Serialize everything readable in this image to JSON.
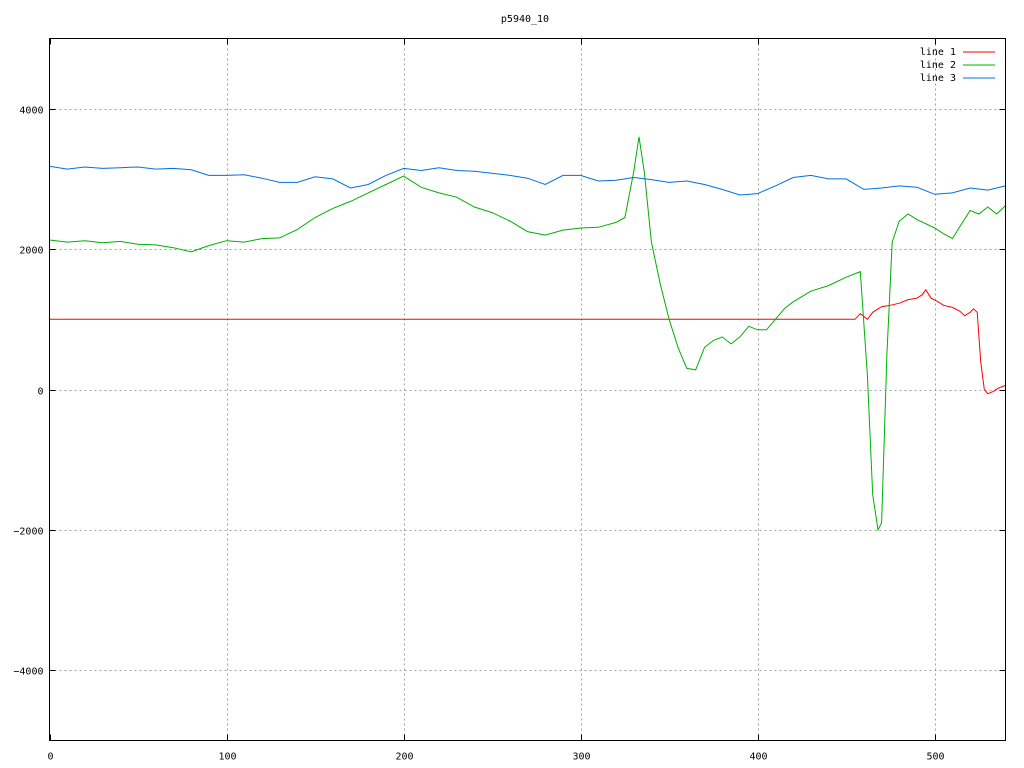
{
  "chart_data": {
    "type": "line",
    "title": "p5940_10",
    "xlabel": "",
    "ylabel": "",
    "xlim": [
      0,
      540
    ],
    "ylim": [
      -5000,
      5000
    ],
    "xticks": [
      0,
      100,
      200,
      300,
      400,
      500
    ],
    "yticks": [
      -4000,
      -2000,
      0,
      2000,
      4000
    ],
    "grid": true,
    "legend_position": "top-right",
    "series": [
      {
        "name": "line 1",
        "color": "#ff0000",
        "points": [
          [
            0,
            1000
          ],
          [
            455,
            1000
          ],
          [
            458,
            1080
          ],
          [
            462,
            1000
          ],
          [
            465,
            1100
          ],
          [
            470,
            1180
          ],
          [
            475,
            1200
          ],
          [
            480,
            1230
          ],
          [
            485,
            1280
          ],
          [
            490,
            1300
          ],
          [
            493,
            1350
          ],
          [
            495,
            1420
          ],
          [
            498,
            1300
          ],
          [
            502,
            1250
          ],
          [
            505,
            1200
          ],
          [
            510,
            1170
          ],
          [
            514,
            1120
          ],
          [
            517,
            1050
          ],
          [
            520,
            1100
          ],
          [
            522,
            1150
          ],
          [
            524,
            1100
          ],
          [
            526,
            400
          ],
          [
            528,
            0
          ],
          [
            530,
            -60
          ],
          [
            533,
            -30
          ],
          [
            536,
            20
          ],
          [
            540,
            60
          ]
        ]
      },
      {
        "name": "line 2",
        "color": "#00b000",
        "points": [
          [
            0,
            2130
          ],
          [
            10,
            2100
          ],
          [
            20,
            2120
          ],
          [
            30,
            2090
          ],
          [
            40,
            2110
          ],
          [
            50,
            2070
          ],
          [
            60,
            2060
          ],
          [
            70,
            2020
          ],
          [
            80,
            1960
          ],
          [
            90,
            2050
          ],
          [
            100,
            2120
          ],
          [
            110,
            2100
          ],
          [
            120,
            2150
          ],
          [
            130,
            2160
          ],
          [
            140,
            2280
          ],
          [
            150,
            2450
          ],
          [
            160,
            2580
          ],
          [
            170,
            2680
          ],
          [
            180,
            2800
          ],
          [
            190,
            2920
          ],
          [
            200,
            3040
          ],
          [
            210,
            2880
          ],
          [
            220,
            2800
          ],
          [
            230,
            2740
          ],
          [
            240,
            2600
          ],
          [
            250,
            2520
          ],
          [
            260,
            2400
          ],
          [
            270,
            2250
          ],
          [
            280,
            2200
          ],
          [
            290,
            2270
          ],
          [
            300,
            2300
          ],
          [
            310,
            2310
          ],
          [
            320,
            2380
          ],
          [
            325,
            2450
          ],
          [
            330,
            3100
          ],
          [
            333,
            3600
          ],
          [
            336,
            3100
          ],
          [
            340,
            2100
          ],
          [
            345,
            1500
          ],
          [
            350,
            1000
          ],
          [
            355,
            600
          ],
          [
            360,
            300
          ],
          [
            365,
            280
          ],
          [
            370,
            600
          ],
          [
            375,
            700
          ],
          [
            380,
            750
          ],
          [
            385,
            650
          ],
          [
            390,
            750
          ],
          [
            395,
            900
          ],
          [
            400,
            850
          ],
          [
            405,
            850
          ],
          [
            410,
            1000
          ],
          [
            415,
            1150
          ],
          [
            420,
            1250
          ],
          [
            430,
            1400
          ],
          [
            440,
            1480
          ],
          [
            450,
            1600
          ],
          [
            458,
            1680
          ],
          [
            462,
            200
          ],
          [
            465,
            -1500
          ],
          [
            468,
            -2000
          ],
          [
            470,
            -1900
          ],
          [
            473,
            500
          ],
          [
            476,
            2100
          ],
          [
            480,
            2400
          ],
          [
            485,
            2500
          ],
          [
            490,
            2420
          ],
          [
            500,
            2300
          ],
          [
            505,
            2220
          ],
          [
            510,
            2150
          ],
          [
            515,
            2350
          ],
          [
            520,
            2550
          ],
          [
            525,
            2500
          ],
          [
            530,
            2600
          ],
          [
            535,
            2500
          ],
          [
            540,
            2620
          ]
        ]
      },
      {
        "name": "line 3",
        "color": "#0070e0",
        "points": [
          [
            0,
            3180
          ],
          [
            10,
            3140
          ],
          [
            20,
            3170
          ],
          [
            30,
            3150
          ],
          [
            40,
            3160
          ],
          [
            50,
            3170
          ],
          [
            60,
            3140
          ],
          [
            70,
            3150
          ],
          [
            80,
            3130
          ],
          [
            90,
            3050
          ],
          [
            100,
            3050
          ],
          [
            110,
            3060
          ],
          [
            120,
            3010
          ],
          [
            130,
            2950
          ],
          [
            140,
            2950
          ],
          [
            150,
            3030
          ],
          [
            160,
            3000
          ],
          [
            170,
            2870
          ],
          [
            180,
            2920
          ],
          [
            190,
            3050
          ],
          [
            200,
            3150
          ],
          [
            210,
            3120
          ],
          [
            220,
            3160
          ],
          [
            230,
            3120
          ],
          [
            240,
            3110
          ],
          [
            250,
            3080
          ],
          [
            260,
            3050
          ],
          [
            270,
            3010
          ],
          [
            280,
            2920
          ],
          [
            290,
            3050
          ],
          [
            300,
            3050
          ],
          [
            310,
            2970
          ],
          [
            320,
            2980
          ],
          [
            330,
            3020
          ],
          [
            340,
            2990
          ],
          [
            350,
            2950
          ],
          [
            360,
            2970
          ],
          [
            370,
            2920
          ],
          [
            380,
            2850
          ],
          [
            390,
            2770
          ],
          [
            400,
            2790
          ],
          [
            410,
            2900
          ],
          [
            420,
            3020
          ],
          [
            430,
            3050
          ],
          [
            440,
            3000
          ],
          [
            450,
            3000
          ],
          [
            460,
            2850
          ],
          [
            470,
            2870
          ],
          [
            480,
            2900
          ],
          [
            490,
            2880
          ],
          [
            500,
            2780
          ],
          [
            510,
            2800
          ],
          [
            520,
            2870
          ],
          [
            530,
            2840
          ],
          [
            540,
            2900
          ]
        ]
      }
    ]
  }
}
